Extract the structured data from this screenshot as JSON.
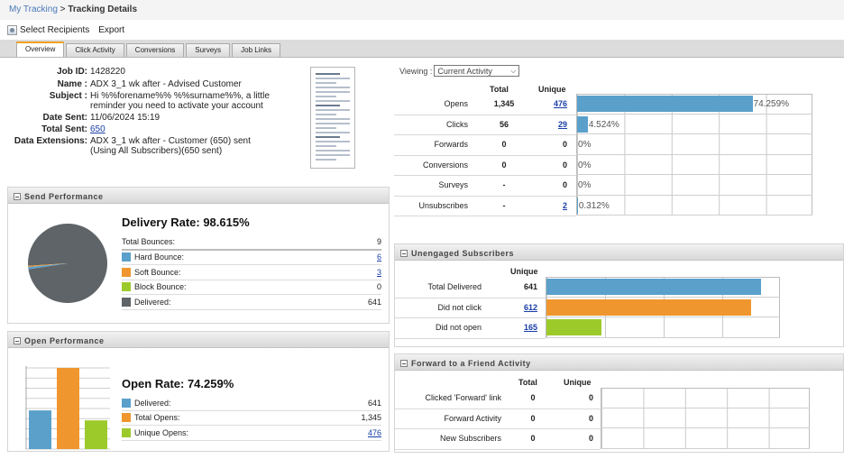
{
  "breadcrumb": {
    "parent": "My Tracking",
    "separator": " > ",
    "current": "Tracking Details"
  },
  "toolbar": {
    "select_recipients": "Select Recipients",
    "export": "Export"
  },
  "tabs": [
    "Overview",
    "Click Activity",
    "Conversions",
    "Surveys",
    "Job Links"
  ],
  "job": {
    "job_id_label": "Job ID:",
    "job_id": "1428220",
    "name_label": "Name :",
    "name": "ADX 3_1 wk after - Advised Customer",
    "subject_label": "Subject :",
    "subject": "Hi %%forename%% %%surname%%, a little reminder you need to activate your account",
    "date_label": "Date Sent:",
    "date": "11/06/2024 15:19",
    "total_label": "Total Sent:",
    "total": "650",
    "ext_label": "Data Extensions:",
    "ext": "ADX 3_1 wk after - Customer (650) sent (Using All Subscribers)(650 sent)"
  },
  "send_performance": {
    "header": "Send Performance",
    "delivery_rate": "Delivery Rate: 98.615%",
    "rows": [
      {
        "label": "Total Bounces:",
        "value": "9",
        "link": false
      },
      {
        "label": "Hard Bounce:",
        "value": "6",
        "link": true,
        "color": "#5aa0cb"
      },
      {
        "label": "Soft Bounce:",
        "value": "3",
        "link": true,
        "color": "#f0962e"
      },
      {
        "label": "Block Bounce:",
        "value": "0",
        "link": false,
        "color": "#9dca2b"
      },
      {
        "label": "Delivered:",
        "value": "641",
        "link": false,
        "color": "#5e6468"
      }
    ],
    "pie": {
      "delivered": 641,
      "hard": 6,
      "soft": 3,
      "block": 0
    }
  },
  "open_performance": {
    "header": "Open Performance",
    "open_rate": "Open Rate: 74.259%",
    "rows": [
      {
        "label": "Delivered:",
        "value": "641",
        "link": false,
        "color": "#5aa0cb"
      },
      {
        "label": "Total Opens:",
        "value": "1,345",
        "link": false,
        "color": "#f0962e"
      },
      {
        "label": "Unique Opens:",
        "value": "476",
        "link": true,
        "color": "#9dca2b"
      }
    ],
    "bars": [
      641,
      1345,
      476
    ]
  },
  "activity": {
    "viewing_label": "Viewing :",
    "viewing_value": "Current Activity",
    "col_total": "Total",
    "col_unique": "Unique",
    "rows": [
      {
        "label": "Opens",
        "total": "1,345",
        "unique": "476",
        "unique_link": true,
        "pct_text": "74.259%",
        "pct": 74.259,
        "color": "#5aa0cb"
      },
      {
        "label": "Clicks",
        "total": "56",
        "unique": "29",
        "unique_link": true,
        "pct_text": "4.524%",
        "pct": 4.524,
        "color": "#5aa0cb"
      },
      {
        "label": "Forwards",
        "total": "0",
        "unique": "0",
        "unique_link": false,
        "pct_text": "0%",
        "pct": 0,
        "color": "#5aa0cb"
      },
      {
        "label": "Conversions",
        "total": "0",
        "unique": "0",
        "unique_link": false,
        "pct_text": "0%",
        "pct": 0,
        "color": "#5aa0cb"
      },
      {
        "label": "Surveys",
        "total": "-",
        "unique": "0",
        "unique_link": false,
        "pct_text": "0%",
        "pct": 0,
        "color": "#5aa0cb"
      },
      {
        "label": "Unsubscribes",
        "total": "-",
        "unique": "2",
        "unique_link": true,
        "pct_text": "0.312%",
        "pct": 0.312,
        "color": "#5aa0cb"
      }
    ]
  },
  "unengaged": {
    "header": "Unengaged Subscribers",
    "col_unique": "Unique",
    "rows": [
      {
        "label": "Total Delivered",
        "value": "641",
        "num": 641,
        "link": false,
        "color": "#5aa0cb"
      },
      {
        "label": "Did not click",
        "value": "612",
        "num": 612,
        "link": true,
        "color": "#f0962e"
      },
      {
        "label": "Did not open",
        "value": "165",
        "num": 165,
        "link": true,
        "color": "#9dca2b"
      }
    ]
  },
  "forward": {
    "header": "Forward to a Friend Activity",
    "col_total": "Total",
    "col_unique": "Unique",
    "rows": [
      {
        "label": "Clicked 'Forward' link",
        "total": "0",
        "unique": "0"
      },
      {
        "label": "Forward Activity",
        "total": "0",
        "unique": "0"
      },
      {
        "label": "New Subscribers",
        "total": "0",
        "unique": "0"
      }
    ]
  }
}
